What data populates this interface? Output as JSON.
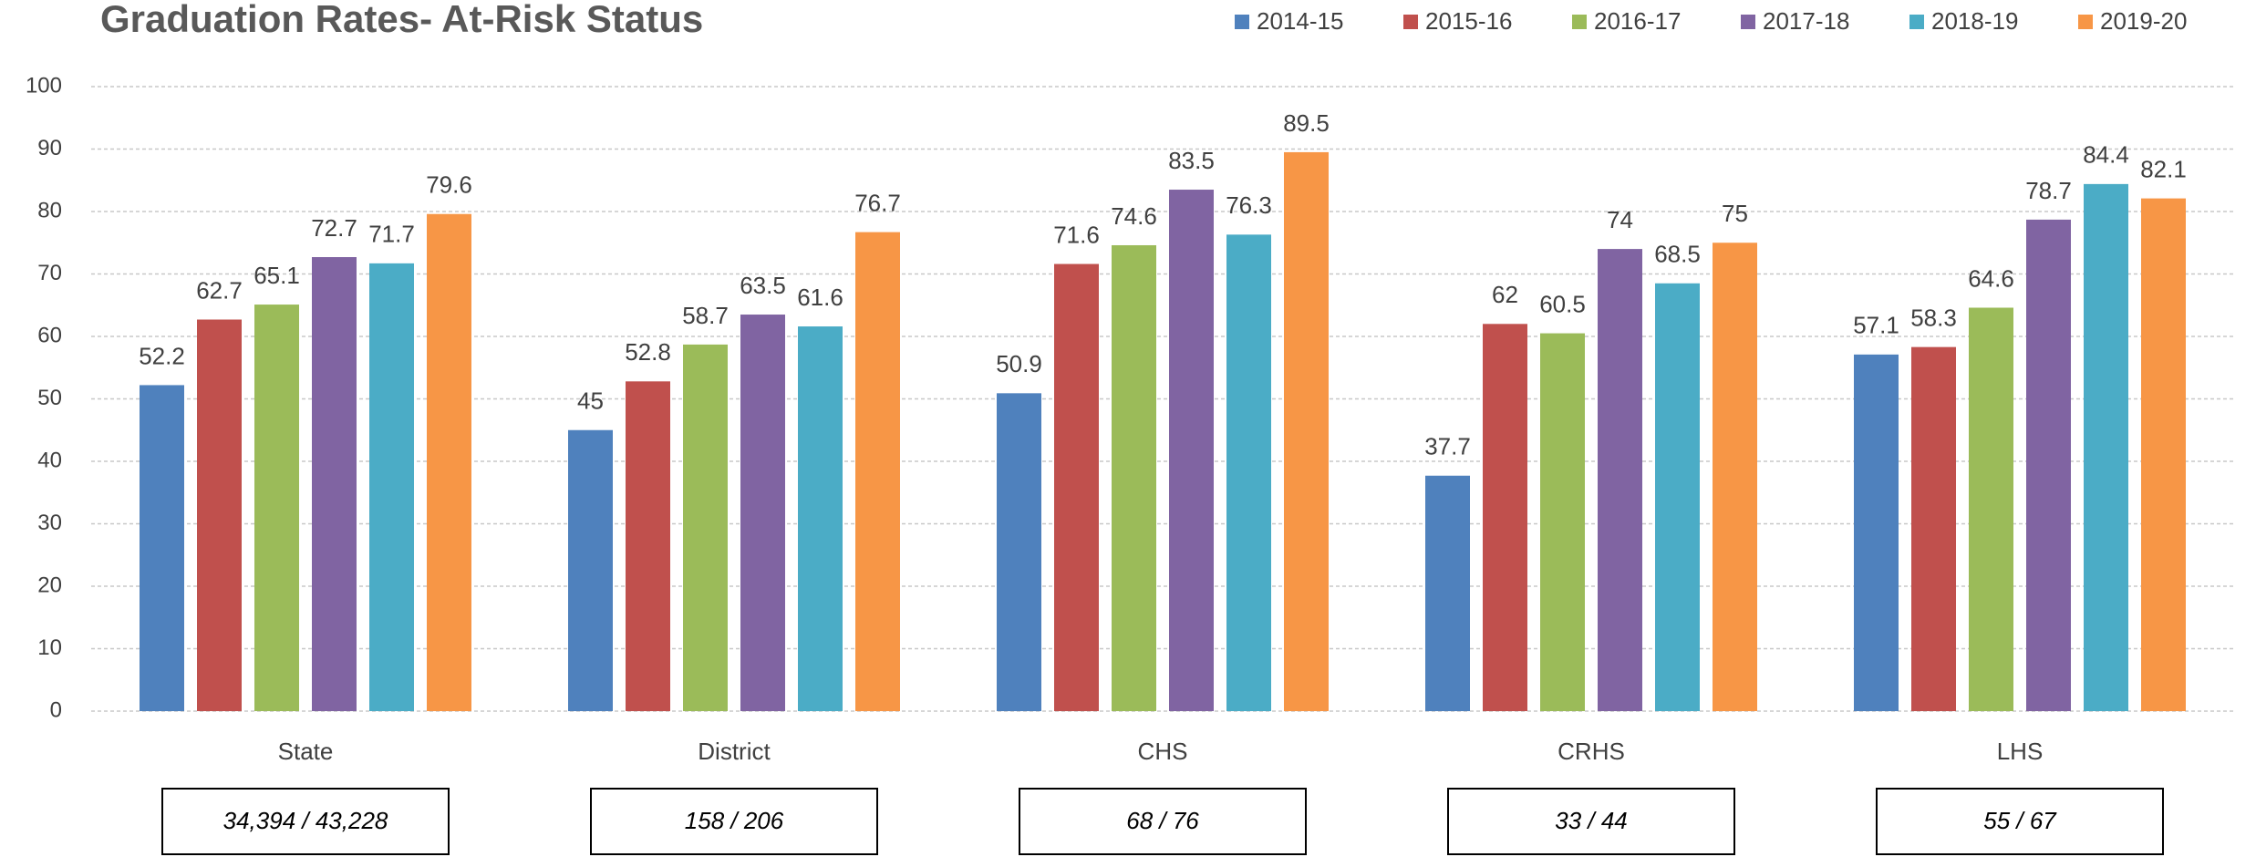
{
  "chart_data": {
    "type": "bar",
    "title": "Graduation Rates- At-Risk Status",
    "categories": [
      "State",
      "District",
      "CHS",
      "CRHS",
      "LHS"
    ],
    "subgroup_counts": [
      "34,394 / 43,228",
      "158 / 206",
      "68 / 76",
      "33 / 44",
      "55 / 67"
    ],
    "series": [
      {
        "name": "2014-15",
        "color": "#4f81bd",
        "values": [
          52.2,
          45,
          50.9,
          37.7,
          57.1
        ]
      },
      {
        "name": "2015-16",
        "color": "#c0504d",
        "values": [
          62.7,
          52.8,
          71.6,
          62,
          58.3
        ]
      },
      {
        "name": "2016-17",
        "color": "#9bbb59",
        "values": [
          65.1,
          58.7,
          74.6,
          60.5,
          64.6
        ]
      },
      {
        "name": "2017-18",
        "color": "#8064a2",
        "values": [
          72.7,
          63.5,
          83.5,
          74,
          78.7
        ]
      },
      {
        "name": "2018-19",
        "color": "#4bacc6",
        "values": [
          71.7,
          61.6,
          76.3,
          68.5,
          84.4
        ]
      },
      {
        "name": "2019-20",
        "color": "#f79646",
        "values": [
          79.6,
          76.7,
          89.5,
          75,
          82.1
        ]
      }
    ],
    "ylim": [
      0,
      100
    ],
    "yticks": [
      0,
      10,
      20,
      30,
      40,
      50,
      60,
      70,
      80,
      90,
      100
    ],
    "grid": true,
    "legend": "top-right"
  }
}
